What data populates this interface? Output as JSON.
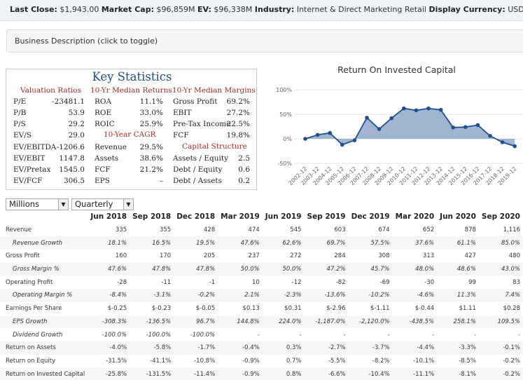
{
  "topbar": [
    {
      "label": "Last Close:",
      "value": "$1,943.00"
    },
    {
      "label": "Market Cap:",
      "value": "$96,859M"
    },
    {
      "label": "EV:",
      "value": "$96,338M"
    },
    {
      "label": "Industry:",
      "value": "Internet & Direct Marketing Retail"
    },
    {
      "label": "Display Currency:",
      "value": "USD"
    }
  ],
  "business_description": "Business Description (click to toggle)",
  "key_statistics": {
    "title": "Key Statistics",
    "headers": {
      "valuation": "Valuation Ratios",
      "returns": "10-Yr Median Returns",
      "margins": "10-Yr Median Margins",
      "cagr": "10-Year CAGR",
      "capital": "Capital Structure"
    },
    "valuation": [
      {
        "label": "P/E",
        "value": "-23481.1"
      },
      {
        "label": "P/B",
        "value": "53.9"
      },
      {
        "label": "P/S",
        "value": "29.2"
      },
      {
        "label": "EV/S",
        "value": "29.0"
      },
      {
        "label": "EV/EBITDA",
        "value": "-1206.6"
      },
      {
        "label": "EV/EBIT",
        "value": "1147.8"
      },
      {
        "label": "EV/Pretax",
        "value": "1545.0"
      },
      {
        "label": "EV/FCF",
        "value": "306.5"
      }
    ],
    "returns": [
      {
        "label": "ROA",
        "value": "11.1%"
      },
      {
        "label": "ROE",
        "value": "33.0%"
      },
      {
        "label": "ROIC",
        "value": "25.9%"
      }
    ],
    "cagr": [
      {
        "label": "Revenue",
        "value": "29.5%"
      },
      {
        "label": "Assets",
        "value": "38.6%"
      },
      {
        "label": "FCF",
        "value": "21.2%"
      },
      {
        "label": "EPS",
        "value": "–"
      }
    ],
    "margins": [
      {
        "label": "Gross Profit",
        "value": "69.2%"
      },
      {
        "label": "EBIT",
        "value": "27.2%"
      },
      {
        "label": "Pre-Tax Income",
        "value": "22.5%"
      },
      {
        "label": "FCF",
        "value": "19.8%"
      }
    ],
    "capital": [
      {
        "label": "Assets / Equity",
        "value": "2.5"
      },
      {
        "label": "Debt / Equity",
        "value": "0.6"
      },
      {
        "label": "Debt / Assets",
        "value": "0.2"
      }
    ]
  },
  "controls": {
    "units": "Millions",
    "period": "Quarterly"
  },
  "chart_data": {
    "type": "area",
    "title": "Return On Invested Capital",
    "x": [
      "2002-12",
      "2003-12",
      "2004-12",
      "2005-12",
      "2006-12",
      "2007-12",
      "2008-12",
      "2009-12",
      "2010-12",
      "2011-12",
      "2012-12",
      "2013-12",
      "2014-12",
      "2015-12",
      "2016-12",
      "2017-12",
      "2018-12",
      "2019-12"
    ],
    "values": [
      0,
      8,
      12,
      -12,
      -3,
      43,
      20,
      42,
      62,
      58,
      62,
      59,
      23,
      24,
      28,
      6,
      -7,
      -15
    ],
    "yticks": [
      "100%",
      "50%",
      "0%",
      "-50%"
    ],
    "ylim": [
      -50,
      100
    ],
    "grid": true,
    "colors": {
      "line": "#1f4f8f",
      "fill": "#8fa9c8"
    }
  },
  "table": {
    "headers": [
      "Jun 2018",
      "Sep 2018",
      "Dec 2018",
      "Mar 2019",
      "Jun 2019",
      "Sep 2019",
      "Dec 2019",
      "Mar 2020",
      "Jun 2020",
      "Sep 2020"
    ],
    "rows": [
      {
        "label": "Revenue",
        "sub": false,
        "values": [
          "335",
          "355",
          "428",
          "474",
          "545",
          "603",
          "674",
          "652",
          "878",
          "1,116"
        ]
      },
      {
        "label": "Revenue Growth",
        "sub": true,
        "values": [
          "18.1%",
          "16.5%",
          "19.5%",
          "47.6%",
          "62.6%",
          "69.7%",
          "57.5%",
          "37.6%",
          "61.1%",
          "85.0%"
        ]
      },
      {
        "label": "Gross Profit",
        "sub": false,
        "values": [
          "160",
          "170",
          "205",
          "237",
          "272",
          "284",
          "308",
          "313",
          "427",
          "480"
        ]
      },
      {
        "label": "Gross Margin %",
        "sub": true,
        "values": [
          "47.6%",
          "47.8%",
          "47.8%",
          "50.0%",
          "50.0%",
          "47.2%",
          "45.7%",
          "48.0%",
          "48.6%",
          "43.0%"
        ]
      },
      {
        "label": "Operating Profit",
        "sub": false,
        "values": [
          "-28",
          "-11",
          "-1",
          "10",
          "-12",
          "-82",
          "-69",
          "-30",
          "99",
          "83"
        ]
      },
      {
        "label": "Operating Margin %",
        "sub": true,
        "values": [
          "-8.4%",
          "-3.1%",
          "-0.2%",
          "2.1%",
          "-2.3%",
          "-13.6%",
          "-10.2%",
          "-4.6%",
          "11.3%",
          "7.4%"
        ]
      },
      {
        "label": "Earnings Per Share",
        "sub": false,
        "values": [
          "$-0.25",
          "$-0.23",
          "$-0.05",
          "$0.13",
          "$0.31",
          "$-2.96",
          "$-1.11",
          "$-0.44",
          "$1.11",
          "$0.28"
        ]
      },
      {
        "label": "EPS Growth",
        "sub": true,
        "values": [
          "-308.3%",
          "-136.5%",
          "96.7%",
          "144.8%",
          "224.0%",
          "-1,187.0%",
          "-2,120.0%",
          "-438.5%",
          "258.1%",
          "109.5%"
        ]
      },
      {
        "label": "Dividend Growth",
        "sub": true,
        "values": [
          "-100.0%",
          "-100.0%",
          "-100.0%",
          "-",
          "-",
          "-",
          "-",
          "-",
          "-",
          "-"
        ]
      },
      {
        "label": "Return on Assets",
        "sub": false,
        "values": [
          "-4.0%",
          "-5.8%",
          "-1.7%",
          "-0.4%",
          "0.3%",
          "-2.7%",
          "-3.7%",
          "-4.4%",
          "-3.3%",
          "-0.1%"
        ]
      },
      {
        "label": "Return on Equity",
        "sub": false,
        "values": [
          "-31.5%",
          "-41.1%",
          "-10.8%",
          "-0.9%",
          "0.7%",
          "-5.5%",
          "-8.2%",
          "-10.1%",
          "-8.5%",
          "-0.2%"
        ]
      },
      {
        "label": "Return on Invested Capital",
        "sub": false,
        "values": [
          "-25.8%",
          "-131.5%",
          "-11.4%",
          "-0.9%",
          "0.8%",
          "-6.6%",
          "-10.4%",
          "-11.1%",
          "-8.1%",
          "-0.2%"
        ]
      }
    ]
  }
}
